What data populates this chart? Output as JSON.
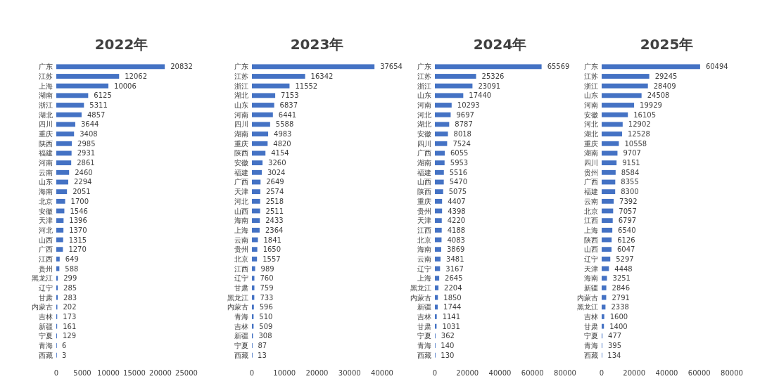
{
  "chart_data": [
    {
      "type": "bar",
      "orientation": "horizontal",
      "title": "2022年",
      "color": "#4472c4",
      "data_labels": true,
      "xlim": [
        0,
        25000
      ],
      "xticks": [
        0,
        5000,
        10000,
        15000,
        20000,
        25000
      ],
      "categories": [
        "广东",
        "江苏",
        "上海",
        "湖南",
        "浙江",
        "湖北",
        "四川",
        "重庆",
        "陕西",
        "福建",
        "河南",
        "云南",
        "山东",
        "海南",
        "北京",
        "安徽",
        "天津",
        "河北",
        "山西",
        "广西",
        "江西",
        "贵州",
        "黑龙江",
        "辽宁",
        "甘肃",
        "内蒙古",
        "吉林",
        "新疆",
        "宁夏",
        "青海",
        "西藏"
      ],
      "values": [
        20832,
        12062,
        10006,
        6125,
        5311,
        4857,
        3644,
        3408,
        2985,
        2931,
        2861,
        2460,
        2294,
        2051,
        1700,
        1546,
        1396,
        1370,
        1315,
        1270,
        649,
        588,
        299,
        285,
        283,
        202,
        173,
        161,
        129,
        6,
        3
      ]
    },
    {
      "type": "bar",
      "orientation": "horizontal",
      "title": "2023年",
      "color": "#4472c4",
      "data_labels": true,
      "xlim": [
        0,
        40000
      ],
      "xticks": [
        0,
        10000,
        20000,
        30000,
        40000
      ],
      "categories": [
        "广东",
        "江苏",
        "浙江",
        "湖北",
        "山东",
        "河南",
        "四川",
        "湖南",
        "重庆",
        "陕西",
        "安徽",
        "福建",
        "广西",
        "天津",
        "河北",
        "山西",
        "海南",
        "上海",
        "云南",
        "贵州",
        "北京",
        "江西",
        "辽宁",
        "甘肃",
        "黑龙江",
        "内蒙古",
        "青海",
        "吉林",
        "新疆",
        "宁夏",
        "西藏"
      ],
      "values": [
        37654,
        16342,
        11552,
        7153,
        6837,
        6441,
        5588,
        4983,
        4820,
        4154,
        3260,
        3024,
        2649,
        2574,
        2518,
        2511,
        2433,
        2364,
        1841,
        1650,
        1557,
        989,
        760,
        759,
        733,
        596,
        510,
        509,
        308,
        87,
        13
      ]
    },
    {
      "type": "bar",
      "orientation": "horizontal",
      "title": "2024年",
      "color": "#4472c4",
      "data_labels": true,
      "xlim": [
        0,
        80000
      ],
      "xticks": [
        0,
        20000,
        40000,
        60000,
        80000
      ],
      "categories": [
        "广东",
        "江苏",
        "浙江",
        "山东",
        "河南",
        "河北",
        "湖北",
        "安徽",
        "四川",
        "广西",
        "湖南",
        "福建",
        "山西",
        "陕西",
        "重庆",
        "贵州",
        "天津",
        "江西",
        "北京",
        "海南",
        "云南",
        "辽宁",
        "上海",
        "黑龙江",
        "内蒙古",
        "新疆",
        "吉林",
        "甘肃",
        "宁夏",
        "青海",
        "西藏"
      ],
      "values": [
        65569,
        25326,
        23091,
        17440,
        10293,
        9697,
        8787,
        8018,
        7524,
        6055,
        5953,
        5516,
        5470,
        5075,
        4407,
        4398,
        4220,
        4188,
        4083,
        3869,
        3481,
        3167,
        2645,
        2204,
        1850,
        1744,
        1141,
        1031,
        362,
        140,
        130
      ]
    },
    {
      "type": "bar",
      "orientation": "horizontal",
      "title": "2025年",
      "color": "#4472c4",
      "data_labels": true,
      "xlim": [
        0,
        80000
      ],
      "xticks": [
        0,
        20000,
        40000,
        60000,
        80000
      ],
      "categories": [
        "广东",
        "江苏",
        "浙江",
        "山东",
        "河南",
        "安徽",
        "河北",
        "湖北",
        "重庆",
        "湖南",
        "四川",
        "贵州",
        "广西",
        "福建",
        "云南",
        "北京",
        "江西",
        "上海",
        "陕西",
        "山西",
        "辽宁",
        "天津",
        "海南",
        "新疆",
        "内蒙古",
        "黑龙江",
        "吉林",
        "甘肃",
        "宁夏",
        "青海",
        "西藏"
      ],
      "values": [
        60494,
        29245,
        28409,
        24508,
        19929,
        16105,
        12902,
        12528,
        10558,
        9707,
        9151,
        8584,
        8355,
        8300,
        7392,
        7057,
        6797,
        6540,
        6126,
        6047,
        5297,
        4448,
        3251,
        2846,
        2791,
        2338,
        1600,
        1400,
        477,
        395,
        134
      ]
    }
  ]
}
